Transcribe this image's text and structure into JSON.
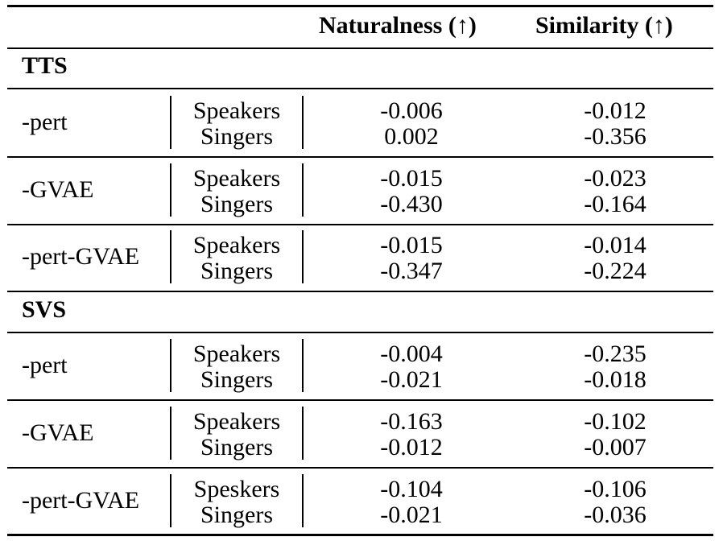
{
  "table": {
    "header": {
      "naturalness": "Naturalness (↑)",
      "similarity": "Similarity (↑)"
    },
    "sections": [
      {
        "title": "TTS",
        "groups": [
          {
            "method": "-pert",
            "rows": [
              {
                "condition": "Speakers",
                "naturalness": "-0.006",
                "similarity": "-0.012"
              },
              {
                "condition": "Singers",
                "naturalness": "0.002",
                "similarity": "-0.356"
              }
            ]
          },
          {
            "method": "-GVAE",
            "rows": [
              {
                "condition": "Speakers",
                "naturalness": "-0.015",
                "similarity": "-0.023"
              },
              {
                "condition": "Singers",
                "naturalness": "-0.430",
                "similarity": "-0.164"
              }
            ]
          },
          {
            "method": "-pert-GVAE",
            "rows": [
              {
                "condition": "Speakers",
                "naturalness": "-0.015",
                "similarity": "-0.014"
              },
              {
                "condition": "Singers",
                "naturalness": "-0.347",
                "similarity": "-0.224"
              }
            ]
          }
        ]
      },
      {
        "title": "SVS",
        "groups": [
          {
            "method": "-pert",
            "rows": [
              {
                "condition": "Speakers",
                "naturalness": "-0.004",
                "similarity": "-0.235"
              },
              {
                "condition": "Singers",
                "naturalness": "-0.021",
                "similarity": "-0.018"
              }
            ]
          },
          {
            "method": "-GVAE",
            "rows": [
              {
                "condition": "Speakers",
                "naturalness": "-0.163",
                "similarity": "-0.102"
              },
              {
                "condition": "Singers",
                "naturalness": "-0.012",
                "similarity": "-0.007"
              }
            ]
          },
          {
            "method": "-pert-GVAE",
            "rows": [
              {
                "condition": "Speskers",
                "naturalness": "-0.104",
                "similarity": "-0.106"
              },
              {
                "condition": "Singers",
                "naturalness": "-0.021",
                "similarity": "-0.036"
              }
            ]
          }
        ]
      }
    ]
  }
}
